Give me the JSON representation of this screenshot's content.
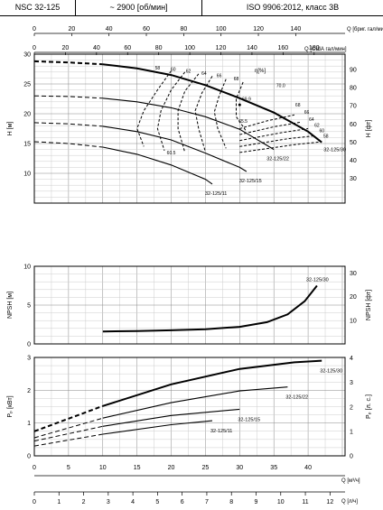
{
  "header": {
    "model": "NSC 32-125",
    "speed": "~ 2900 [об/мин]",
    "standard": "ISO 9906:2012, класс 3B"
  },
  "chart_data": {
    "type": "line",
    "top_axes": {
      "q_imp": {
        "label": "Q [бриг. гал/мин]",
        "ticks": [
          0,
          20,
          40,
          60,
          80,
          100,
          120,
          140
        ]
      },
      "q_us": {
        "label": "Q [США гал/мин]",
        "ticks": [
          0,
          20,
          40,
          60,
          80,
          100,
          120,
          140,
          160,
          180
        ]
      }
    },
    "bottom_axes": {
      "q_m3h": {
        "label": "Q [м³/ч]",
        "ticks": [
          0,
          5,
          10,
          15,
          20,
          25,
          30,
          35,
          40
        ]
      },
      "q_ls": {
        "label": "Q [л/ч]",
        "ticks": [
          0,
          1,
          2,
          3,
          4,
          5,
          6,
          7,
          8,
          9,
          10,
          11,
          12
        ]
      }
    },
    "head_panel": {
      "ylabel_left": "H [м]",
      "ylabel_right": "H [фт]",
      "yticks_left": [
        10,
        15,
        20,
        25,
        30
      ],
      "yticks_right": [
        30,
        40,
        50,
        60,
        70,
        80,
        90
      ],
      "ylim": [
        5,
        30
      ],
      "efficiency_symbol": "η[%]",
      "series": [
        {
          "name": "32-125/30",
          "points": [
            [
              0,
              28.8
            ],
            [
              5,
              28.6
            ],
            [
              10,
              28.3
            ],
            [
              15,
              27.6
            ],
            [
              20,
              26.5
            ],
            [
              25,
              24.8
            ],
            [
              30,
              22.6
            ],
            [
              35,
              20.2
            ],
            [
              40,
              17.0
            ],
            [
              42,
              15.2
            ]
          ]
        },
        {
          "name": "32-125/22",
          "points": [
            [
              0,
              23.0
            ],
            [
              5,
              22.9
            ],
            [
              10,
              22.6
            ],
            [
              15,
              22.0
            ],
            [
              20,
              21.0
            ],
            [
              25,
              19.5
            ],
            [
              30,
              17.4
            ],
            [
              35,
              14.0
            ]
          ]
        },
        {
          "name": "32-125/15",
          "points": [
            [
              0,
              18.5
            ],
            [
              5,
              18.3
            ],
            [
              10,
              17.9
            ],
            [
              15,
              17.0
            ],
            [
              20,
              15.6
            ],
            [
              25,
              13.4
            ],
            [
              30,
              11.0
            ],
            [
              31,
              10.3
            ]
          ]
        },
        {
          "name": "32-125/11",
          "points": [
            [
              0,
              15.3
            ],
            [
              5,
              15.0
            ],
            [
              10,
              14.4
            ],
            [
              15,
              13.2
            ],
            [
              20,
              11.4
            ],
            [
              25,
              9.0
            ],
            [
              26,
              8.2
            ]
          ]
        }
      ],
      "efficiency_labels": [
        "58",
        "60",
        "62",
        "64",
        "66",
        "68",
        "70.0",
        "69.9",
        "68",
        "66",
        "64",
        "62",
        "60",
        "58",
        "65.5",
        "60.5"
      ]
    },
    "npsh_panel": {
      "ylabel_left": "NPSH [м]",
      "ylabel_right": "NPSH [фт]",
      "yticks_left": [
        0,
        5,
        10
      ],
      "yticks_right": [
        10,
        20,
        30
      ],
      "ylim": [
        0,
        10
      ],
      "series": [
        {
          "name": "32-125/30",
          "points": [
            [
              10,
              1.6
            ],
            [
              15,
              1.65
            ],
            [
              20,
              1.75
            ],
            [
              25,
              1.9
            ],
            [
              30,
              2.2
            ],
            [
              34,
              2.8
            ],
            [
              37,
              3.8
            ],
            [
              39.5,
              5.5
            ],
            [
              41.3,
              7.5
            ]
          ]
        }
      ]
    },
    "power_panel": {
      "ylabel_left": "Pₚ [кВт]",
      "ylabel_right": "Pₚ [л. с.]",
      "yticks_left": [
        0,
        1,
        2,
        3
      ],
      "yticks_right": [
        0,
        1,
        2,
        3,
        4
      ],
      "ylim": [
        0,
        3
      ],
      "series": [
        {
          "name": "32-125/30",
          "points": [
            [
              0,
              0.75
            ],
            [
              10,
              1.52
            ],
            [
              20,
              2.18
            ],
            [
              30,
              2.65
            ],
            [
              38,
              2.85
            ],
            [
              42,
              2.9
            ]
          ]
        },
        {
          "name": "32-125/22",
          "points": [
            [
              0,
              0.55
            ],
            [
              10,
              1.15
            ],
            [
              20,
              1.62
            ],
            [
              30,
              1.98
            ],
            [
              37,
              2.1
            ]
          ]
        },
        {
          "name": "32-125/15",
          "points": [
            [
              0,
              0.45
            ],
            [
              10,
              0.9
            ],
            [
              20,
              1.23
            ],
            [
              30,
              1.42
            ]
          ]
        },
        {
          "name": "32-125/11",
          "points": [
            [
              0,
              0.3
            ],
            [
              10,
              0.66
            ],
            [
              20,
              0.95
            ],
            [
              26,
              1.07
            ]
          ]
        }
      ]
    }
  }
}
